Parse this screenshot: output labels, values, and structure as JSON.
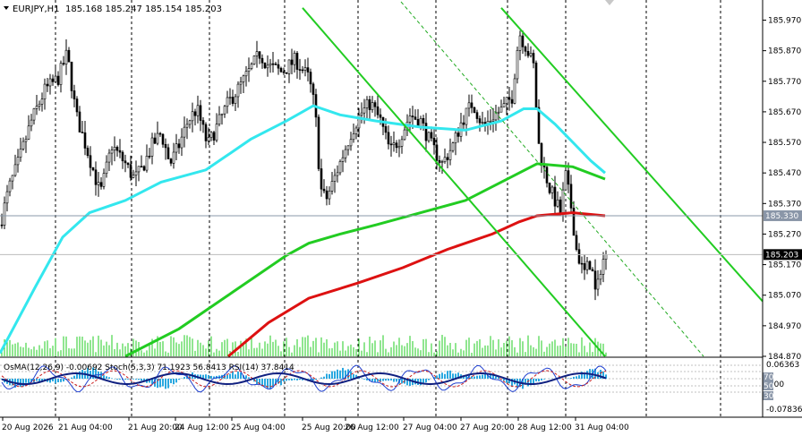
{
  "chart_data": {
    "type": "candlestick",
    "symbol": "EURJPY,H1",
    "ohlc_readout": "185.168 185.247 185.154 185.203",
    "price_axis": {
      "ylim": [
        184.87,
        186.03
      ],
      "ticks": [
        "185.970",
        "185.870",
        "185.770",
        "185.670",
        "185.570",
        "185.470",
        "185.370",
        "185.270",
        "185.170",
        "185.070",
        "184.970",
        "184.870"
      ]
    },
    "price_labels": [
      {
        "value": 185.33,
        "text": "185.330",
        "style": "gray"
      },
      {
        "value": 185.203,
        "text": "185.203",
        "style": "black"
      }
    ],
    "time_axis": [
      "20 Aug 2026",
      "21 Aug 04:00",
      "21 Aug 20:00",
      "24 Aug 12:00",
      "25 Aug 04:00",
      "25 Aug 20:00",
      "26 Aug 12:00",
      "27 Aug 04:00",
      "27 Aug 20:00",
      "28 Aug 12:00",
      "31 Aug 04:00"
    ],
    "close_anchors": [
      [
        0,
        185.3
      ],
      [
        10,
        185.42
      ],
      [
        20,
        185.5
      ],
      [
        35,
        185.64
      ],
      [
        50,
        185.74
      ],
      [
        65,
        185.78
      ],
      [
        75,
        185.86
      ],
      [
        85,
        185.66
      ],
      [
        100,
        185.52
      ],
      [
        112,
        185.4
      ],
      [
        125,
        185.56
      ],
      [
        140,
        185.5
      ],
      [
        150,
        185.45
      ],
      [
        158,
        185.48
      ],
      [
        170,
        185.56
      ],
      [
        180,
        185.6
      ],
      [
        190,
        185.5
      ],
      [
        200,
        185.56
      ],
      [
        210,
        185.64
      ],
      [
        220,
        185.68
      ],
      [
        232,
        185.56
      ],
      [
        242,
        185.62
      ],
      [
        255,
        185.7
      ],
      [
        265,
        185.74
      ],
      [
        278,
        185.8
      ],
      [
        290,
        185.86
      ],
      [
        300,
        185.82
      ],
      [
        315,
        185.8
      ],
      [
        330,
        185.84
      ],
      [
        345,
        185.78
      ],
      [
        352,
        185.68
      ],
      [
        358,
        185.42
      ],
      [
        364,
        185.38
      ],
      [
        372,
        185.44
      ],
      [
        382,
        185.52
      ],
      [
        392,
        185.6
      ],
      [
        402,
        185.66
      ],
      [
        414,
        185.7
      ],
      [
        425,
        185.64
      ],
      [
        436,
        185.54
      ],
      [
        446,
        185.58
      ],
      [
        458,
        185.66
      ],
      [
        470,
        185.64
      ],
      [
        482,
        185.56
      ],
      [
        494,
        185.5
      ],
      [
        506,
        185.56
      ],
      [
        516,
        185.64
      ],
      [
        528,
        185.7
      ],
      [
        540,
        185.62
      ],
      [
        552,
        185.66
      ],
      [
        562,
        185.68
      ],
      [
        572,
        185.72
      ],
      [
        580,
        185.93
      ],
      [
        588,
        185.88
      ],
      [
        596,
        185.82
      ],
      [
        602,
        185.56
      ],
      [
        608,
        185.48
      ],
      [
        614,
        185.42
      ],
      [
        620,
        185.38
      ],
      [
        626,
        185.34
      ],
      [
        632,
        185.46
      ],
      [
        638,
        185.36
      ],
      [
        644,
        185.22
      ],
      [
        652,
        185.14
      ],
      [
        660,
        185.18
      ],
      [
        666,
        185.06
      ],
      [
        672,
        185.18
      ],
      [
        678,
        185.2
      ]
    ],
    "moving_averages": [
      {
        "color": "#33e7ee",
        "points": [
          [
            0,
            184.88
          ],
          [
            40,
            185.1
          ],
          [
            70,
            185.26
          ],
          [
            100,
            185.34
          ],
          [
            140,
            185.38
          ],
          [
            180,
            185.44
          ],
          [
            230,
            185.48
          ],
          [
            280,
            185.58
          ],
          [
            320,
            185.64
          ],
          [
            350,
            185.69
          ],
          [
            380,
            185.66
          ],
          [
            420,
            185.64
          ],
          [
            470,
            185.62
          ],
          [
            520,
            185.61
          ],
          [
            560,
            185.64
          ],
          [
            585,
            185.68
          ],
          [
            600,
            185.68
          ],
          [
            620,
            185.63
          ],
          [
            640,
            185.57
          ],
          [
            660,
            185.51
          ],
          [
            676,
            185.47
          ]
        ]
      },
      {
        "color": "#22cc22",
        "points": [
          [
            140,
            184.87
          ],
          [
            200,
            184.96
          ],
          [
            260,
            185.08
          ],
          [
            320,
            185.2
          ],
          [
            345,
            185.24
          ],
          [
            380,
            185.27
          ],
          [
            420,
            185.3
          ],
          [
            470,
            185.34
          ],
          [
            520,
            185.38
          ],
          [
            560,
            185.44
          ],
          [
            600,
            185.5
          ],
          [
            640,
            185.49
          ],
          [
            676,
            185.45
          ]
        ]
      },
      {
        "color": "#dd1111",
        "points": [
          [
            255,
            184.87
          ],
          [
            300,
            184.98
          ],
          [
            345,
            185.06
          ],
          [
            400,
            185.11
          ],
          [
            450,
            185.16
          ],
          [
            500,
            185.22
          ],
          [
            550,
            185.27
          ],
          [
            580,
            185.31
          ],
          [
            600,
            185.33
          ],
          [
            640,
            185.34
          ],
          [
            676,
            185.33
          ]
        ]
      }
    ],
    "trend_channel_lines": [
      {
        "from": [
          338,
          186.01
        ],
        "to": [
          676,
          184.87
        ]
      },
      {
        "from": [
          560,
          186.01
        ],
        "to": [
          852,
          185.05
        ]
      }
    ],
    "indicator_panel": {
      "legend": "OsMA(12,26,9) -0.00692  Stoch(5,3,3) 71.1923 56.8413  RSI(14) 37.8414",
      "axis_labels": [
        "0.06363",
        "70",
        "0.00",
        "30",
        "-0.07836"
      ],
      "level_markers": [
        "70",
        "50",
        "30"
      ]
    }
  }
}
